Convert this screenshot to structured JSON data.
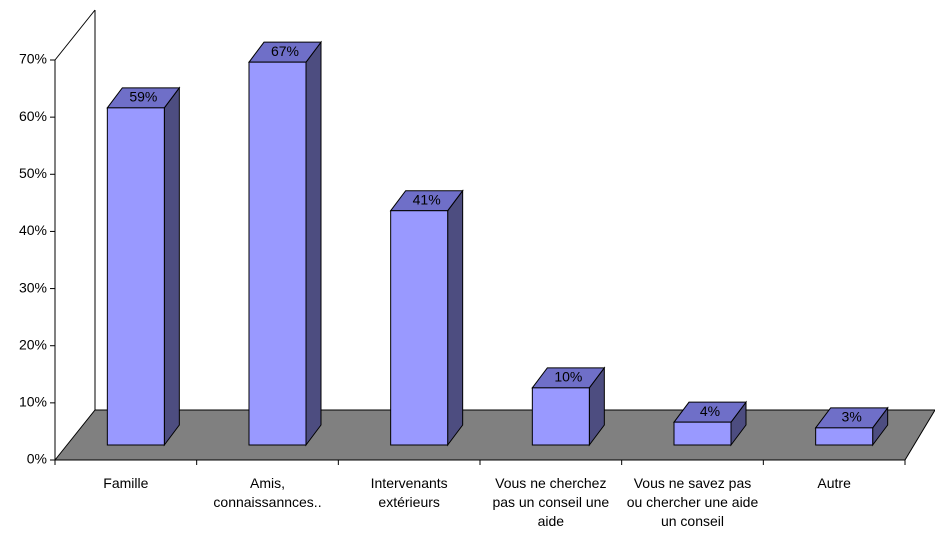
{
  "chart_data": {
    "type": "bar3d",
    "categories": [
      "Famille",
      "Amis, connaissannces..",
      "Intervenants extérieurs",
      "Vous ne cherchez pas un conseil une aide",
      "Vous ne savez pas ou chercher une aide un conseil",
      "Autre"
    ],
    "values": [
      59,
      67,
      41,
      10,
      4,
      3
    ],
    "value_labels": [
      "59%",
      "67%",
      "41%",
      "10%",
      "4%",
      "3%"
    ],
    "color": "#9999ff",
    "ylim": [
      0,
      70
    ],
    "yticks": [
      {
        "value": 0,
        "label": "0%"
      },
      {
        "value": 10,
        "label": "10%"
      },
      {
        "value": 20,
        "label": "20%"
      },
      {
        "value": 30,
        "label": "30%"
      },
      {
        "value": 40,
        "label": "40%"
      },
      {
        "value": 50,
        "label": "50%"
      },
      {
        "value": 60,
        "label": "60%"
      },
      {
        "value": 70,
        "label": "70%"
      }
    ]
  }
}
